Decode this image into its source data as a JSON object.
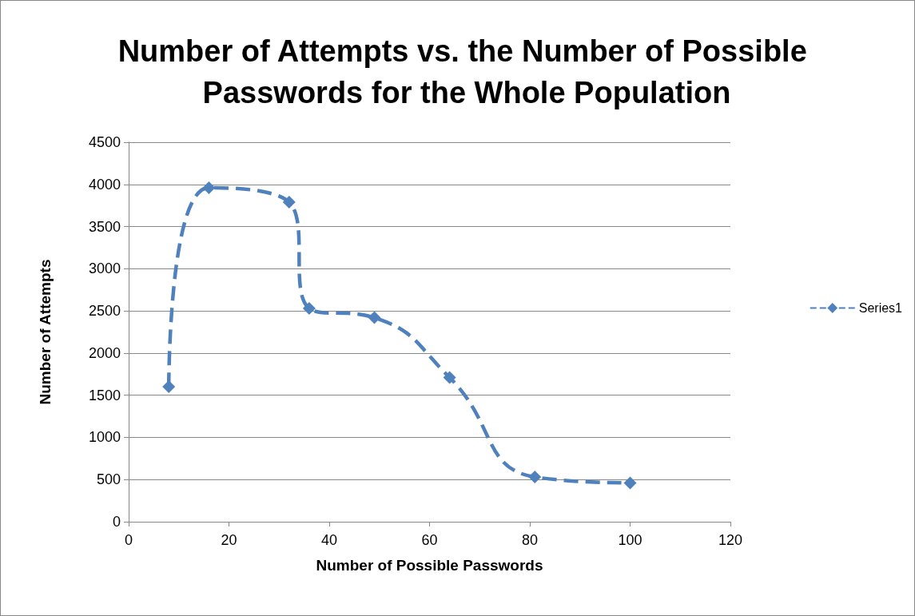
{
  "chart_data": {
    "type": "line",
    "title": "Number of Attempts vs. the Number of Possible Passwords for the Whole Population",
    "xlabel": "Number of Possible Passwords",
    "ylabel": "Number of Attempts",
    "x": [
      8,
      16,
      32,
      36,
      49,
      64,
      81,
      100
    ],
    "series": [
      {
        "name": "Series1",
        "color": "#4f81bd",
        "values": [
          1600,
          3960,
          3790,
          2530,
          2420,
          1710,
          530,
          460
        ]
      }
    ],
    "xlim": [
      0,
      120
    ],
    "xticks": [
      0,
      20,
      40,
      60,
      80,
      100,
      120
    ],
    "ylim": [
      0,
      4500
    ],
    "yticks": [
      0,
      500,
      1000,
      1500,
      2000,
      2500,
      3000,
      3500,
      4000,
      4500
    ],
    "grid": "y",
    "legend": "right",
    "marker": "diamond",
    "line_style": "dashed"
  }
}
